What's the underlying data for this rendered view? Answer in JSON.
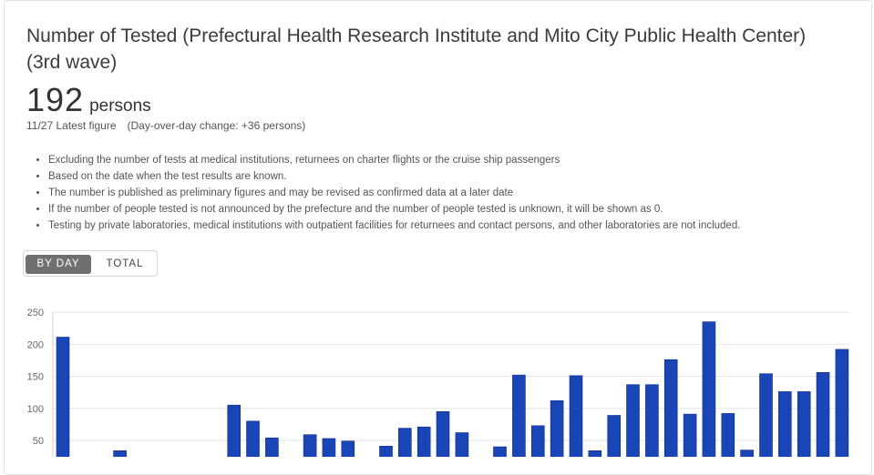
{
  "card": {
    "title": "Number of Tested (Prefectural Health Research Institute and Mito City Public Health Center) (3rd wave)",
    "value": "192",
    "unit": "persons",
    "subtitle": "11/27 Latest figure　(Day-over-day change: +36 persons)",
    "notes": [
      "Excluding the number of tests at medical institutions, returnees on charter flights or the cruise ship passengers",
      "Based on the date when the test results are known.",
      "The number is published as preliminary figures and may be revised as confirmed data at a later date",
      "If the number of people tested is not announced by the prefecture and the number of people tested is unknown, it will be shown as 0.",
      "Testing by private laboratories, medical institutions with outpatient facilities for returnees and contact persons, and other laboratories are not included."
    ],
    "toggle": {
      "by_day": "BY DAY",
      "total": "TOTAL",
      "selected": "BY DAY"
    }
  },
  "chart_data": {
    "type": "bar",
    "bar_color": "#1a45b7",
    "grid": true,
    "ylim": [
      0,
      250
    ],
    "yticks": [
      "50",
      "100",
      "150",
      "200",
      "250"
    ],
    "values": [
      211,
      0,
      0,
      34,
      0,
      0,
      0,
      0,
      0,
      105,
      80,
      54,
      0,
      59,
      53,
      49,
      0,
      41,
      69,
      71,
      95,
      62,
      0,
      40,
      152,
      73,
      112,
      151,
      34,
      89,
      137,
      137,
      176,
      91,
      235,
      92,
      35,
      154,
      126,
      126,
      156,
      192
    ]
  }
}
